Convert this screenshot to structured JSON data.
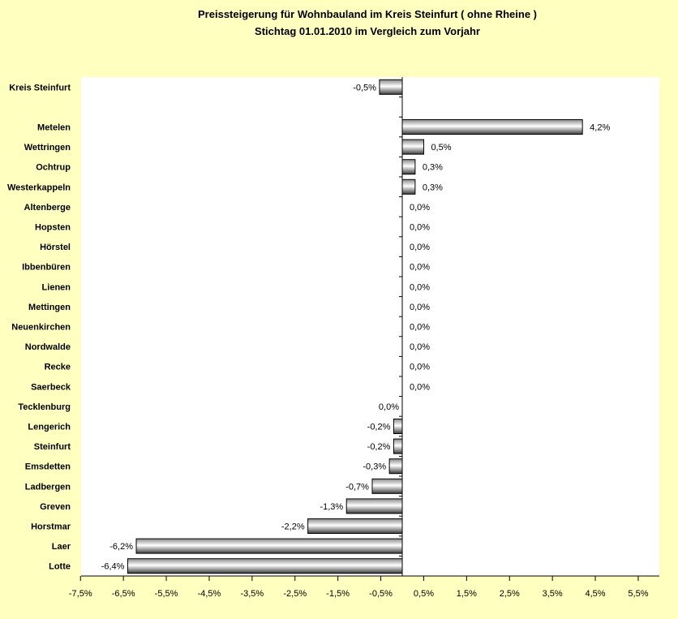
{
  "chart_data": {
    "type": "bar",
    "orientation": "horizontal",
    "title": "Preissteigerung für Wohnbauland im Kreis Steinfurt ( ohne Rheine )",
    "subtitle": "Stichtag 01.01.2010 im Vergleich zum Vorjahr",
    "xlabel": "",
    "ylabel": "",
    "xlim": [
      -7.5,
      6.0
    ],
    "grid": false,
    "legend": "none",
    "x_ticks": [
      "-7,5%",
      "-6,5%",
      "-5,5%",
      "-4,5%",
      "-3,5%",
      "-2,5%",
      "-1,5%",
      "-0,5%",
      "0,5%",
      "1,5%",
      "2,5%",
      "3,5%",
      "4,5%",
      "5,5%"
    ],
    "x_tick_values": [
      -7.5,
      -6.5,
      -5.5,
      -4.5,
      -3.5,
      -2.5,
      -1.5,
      -0.5,
      0.5,
      1.5,
      2.5,
      3.5,
      4.5,
      5.5
    ],
    "categories": [
      "Kreis Steinfurt",
      "",
      "Metelen",
      "Wettringen",
      "Ochtrup",
      "Westerkappeln",
      "Altenberge",
      "Hopsten",
      "Hörstel",
      "Ibbenbüren",
      "Lienen",
      "Mettingen",
      "Neuenkirchen",
      "Nordwalde",
      "Recke",
      "Saerbeck",
      "Tecklenburg",
      "Lengerich",
      "Steinfurt",
      "Emsdetten",
      "Ladbergen",
      "Greven",
      "Horstmar",
      "Laer",
      "Lotte"
    ],
    "values": [
      -0.53,
      null,
      4.2,
      0.5,
      0.3,
      0.3,
      0.0,
      0.0,
      0.0,
      0.0,
      0.0,
      0.0,
      0.0,
      0.0,
      0.0,
      0.0,
      0.0,
      -0.2,
      -0.2,
      -0.3,
      -0.7,
      -1.3,
      -2.2,
      -6.2,
      -6.4
    ],
    "data_labels": [
      "-0,5%",
      "",
      "4,2%",
      "0,5%",
      "0,3%",
      "0,3%",
      "0,0%",
      "0,0%",
      "0,0%",
      "0,0%",
      "0,0%",
      "0,0%",
      "0,0%",
      "0,0%",
      "0,0%",
      "0,0%",
      "0,0%",
      "-0,2%",
      "-0,2%",
      "-0,3%",
      "-0,7%",
      "-1,3%",
      "-2,2%",
      "-6,2%",
      "-6,4%"
    ],
    "colors": {
      "background": "#ffffc0",
      "plot_area": "#ffffff",
      "bar_light": "#ffffff",
      "bar_dark": "#555555",
      "bar_border": "#000000"
    }
  }
}
